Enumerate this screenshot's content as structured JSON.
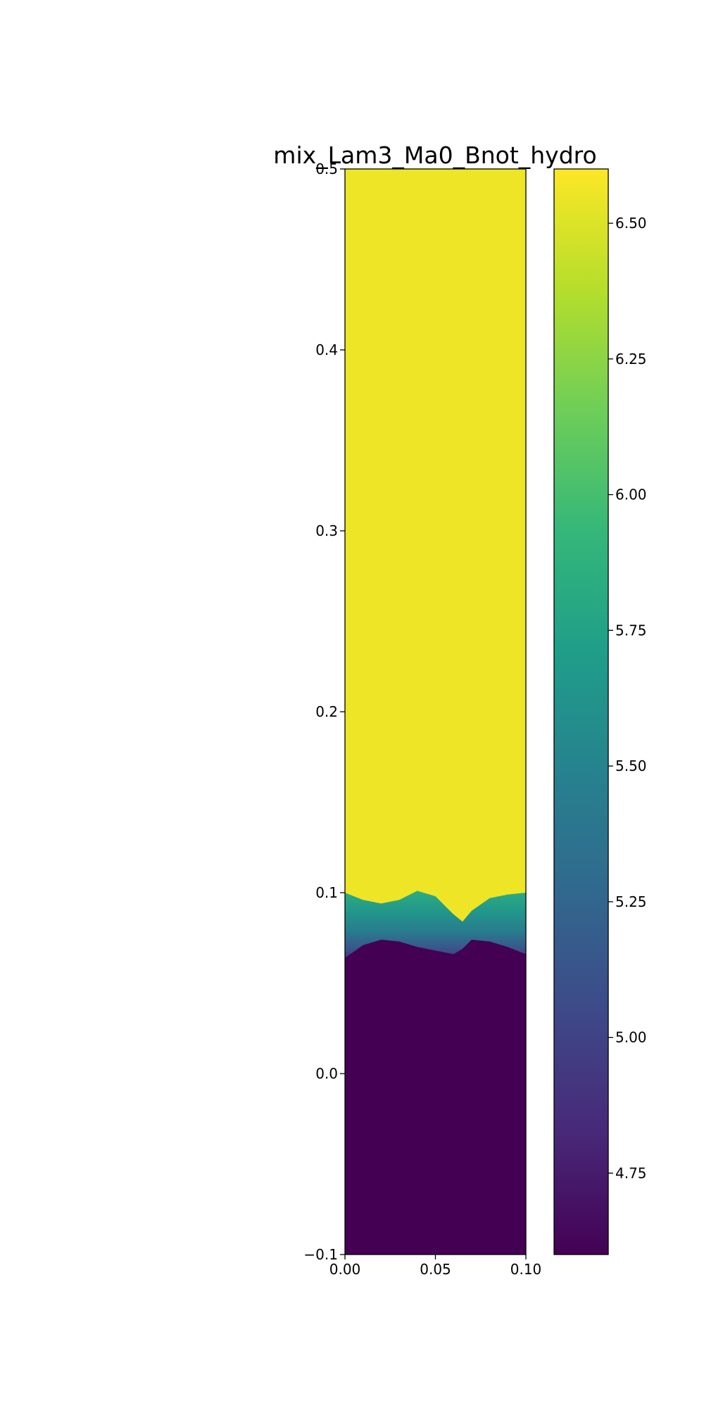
{
  "chart_data": {
    "type": "heatmap",
    "title": "mix_Lam3_Ma0_Bnot_hydro",
    "xlabel": "",
    "ylabel": "",
    "xlim": [
      0.0,
      0.1
    ],
    "ylim": [
      -0.1,
      0.5
    ],
    "x_ticks": [
      0.0,
      0.05,
      0.1
    ],
    "x_tick_labels": [
      "0.00",
      "0.05",
      "0.10"
    ],
    "y_ticks": [
      -0.1,
      0.0,
      0.1,
      0.2,
      0.3,
      0.4,
      0.5
    ],
    "y_tick_labels": [
      "−0.1",
      "0.0",
      "0.1",
      "0.2",
      "0.3",
      "0.4",
      "0.5"
    ],
    "grid": false,
    "colormap": "viridis",
    "colorbar": {
      "range": [
        4.6,
        6.6
      ],
      "ticks": [
        4.75,
        5.0,
        5.25,
        5.5,
        5.75,
        6.0,
        6.25,
        6.5
      ],
      "tick_labels": [
        "4.75",
        "5.00",
        "5.25",
        "5.50",
        "5.75",
        "6.00",
        "6.25",
        "6.50"
      ]
    },
    "field": {
      "upper_value": 6.55,
      "lower_value": 4.6,
      "interface_y_range": [
        0.065,
        0.1
      ],
      "interface_profile": {
        "x": [
          0.0,
          0.01,
          0.02,
          0.03,
          0.04,
          0.05,
          0.06,
          0.065,
          0.07,
          0.08,
          0.09,
          0.1
        ],
        "top_y": [
          0.1,
          0.096,
          0.094,
          0.096,
          0.101,
          0.098,
          0.088,
          0.084,
          0.09,
          0.097,
          0.099,
          0.1
        ],
        "bottom_y": [
          0.064,
          0.071,
          0.074,
          0.073,
          0.07,
          0.068,
          0.066,
          0.069,
          0.074,
          0.073,
          0.07,
          0.066
        ]
      }
    }
  }
}
